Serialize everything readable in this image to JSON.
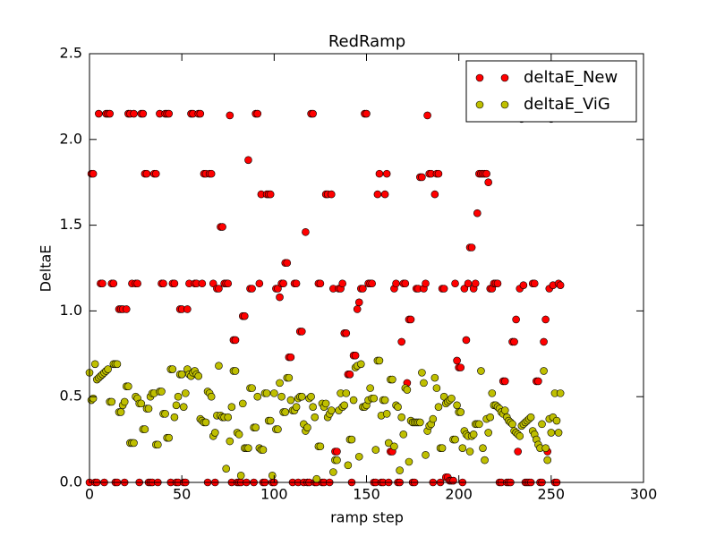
{
  "chart_data": {
    "type": "scatter",
    "title": "RedRamp",
    "xlabel": "ramp step",
    "ylabel": "DeltaE",
    "xlim": [
      0,
      300
    ],
    "ylim": [
      0,
      2.5
    ],
    "xticks": [
      0,
      50,
      100,
      150,
      200,
      250,
      300
    ],
    "yticks": [
      {
        "value": 0,
        "label": "0.0"
      },
      {
        "value": 0.5,
        "label": "0.5"
      },
      {
        "value": 1,
        "label": "1.0"
      },
      {
        "value": 1.5,
        "label": "1.5"
      },
      {
        "value": 2,
        "label": "2.0"
      },
      {
        "value": 2.5,
        "label": "2.5"
      }
    ],
    "legend": "upper right",
    "x": [
      0,
      1,
      2,
      3,
      4,
      5,
      6,
      7,
      8,
      9,
      10,
      11,
      12,
      13,
      14,
      15,
      16,
      17,
      18,
      19,
      20,
      21,
      22,
      23,
      24,
      25,
      26,
      27,
      28,
      29,
      30,
      31,
      32,
      33,
      34,
      35,
      36,
      37,
      38,
      39,
      40,
      41,
      42,
      43,
      44,
      45,
      46,
      47,
      48,
      49,
      50,
      51,
      52,
      53,
      54,
      55,
      56,
      57,
      58,
      59,
      60,
      61,
      62,
      63,
      64,
      65,
      66,
      67,
      68,
      69,
      70,
      71,
      72,
      73,
      74,
      75,
      76,
      77,
      78,
      79,
      80,
      81,
      82,
      83,
      84,
      85,
      86,
      87,
      88,
      89,
      90,
      91,
      92,
      93,
      94,
      95,
      96,
      97,
      98,
      99,
      100,
      101,
      102,
      103,
      104,
      105,
      106,
      107,
      108,
      109,
      110,
      111,
      112,
      113,
      114,
      115,
      116,
      117,
      118,
      119,
      120,
      121,
      122,
      123,
      124,
      125,
      126,
      127,
      128,
      129,
      130,
      131,
      132,
      133,
      134,
      135,
      136,
      137,
      138,
      139,
      140,
      141,
      142,
      143,
      144,
      145,
      146,
      147,
      148,
      149,
      150,
      151,
      152,
      153,
      154,
      155,
      156,
      157,
      158,
      159,
      160,
      161,
      162,
      163,
      164,
      165,
      166,
      167,
      168,
      169,
      170,
      171,
      172,
      173,
      174,
      175,
      176,
      177,
      178,
      179,
      180,
      181,
      182,
      183,
      184,
      185,
      186,
      187,
      188,
      189,
      190,
      191,
      192,
      193,
      194,
      195,
      196,
      197,
      198,
      199,
      200,
      201,
      202,
      203,
      204,
      205,
      206,
      207,
      208,
      209,
      210,
      211,
      212,
      213,
      214,
      215,
      216,
      217,
      218,
      219,
      220,
      221,
      222,
      223,
      224,
      225,
      226,
      227,
      228,
      229,
      230,
      231,
      232,
      233,
      234,
      235,
      236,
      237,
      238,
      239,
      240,
      241,
      242,
      243,
      244,
      245,
      246,
      247,
      248,
      249,
      250,
      251,
      252,
      253,
      254,
      255
    ],
    "series": [
      {
        "name": "deltaE_New",
        "color": "#ff0000",
        "values": [
          0,
          1.8,
          1.8,
          0,
          0,
          2.15,
          1.16,
          1.16,
          0,
          2.15,
          2.15,
          2.15,
          1.16,
          1.16,
          0,
          0,
          1.01,
          1.01,
          1.01,
          0,
          1.01,
          2.15,
          2.15,
          1.16,
          2.15,
          1.16,
          1.16,
          0,
          2.15,
          2.15,
          1.8,
          1.8,
          0,
          0,
          0,
          1.8,
          1.8,
          0,
          2.15,
          1.16,
          1.16,
          2.15,
          2.15,
          2.15,
          0,
          1.16,
          1.16,
          0,
          0,
          1.01,
          1.01,
          0,
          0,
          1.01,
          1.16,
          2.15,
          2.15,
          1.16,
          1.16,
          2.15,
          2.15,
          1.16,
          1.8,
          1.8,
          0,
          1.8,
          1.8,
          1.16,
          0,
          1.13,
          1.13,
          1.49,
          1.49,
          1.16,
          1.16,
          1.16,
          2.14,
          0,
          0.83,
          0.83,
          0,
          0,
          0,
          0.97,
          0.97,
          0,
          1.88,
          1.13,
          1.13,
          0,
          2.15,
          2.15,
          1.16,
          1.68,
          0,
          0,
          1.68,
          1.68,
          1.68,
          0,
          0,
          1.13,
          1.13,
          1.08,
          1.16,
          1.16,
          1.28,
          1.28,
          0.73,
          0.73,
          0,
          1.16,
          1.16,
          0,
          0.88,
          0.88,
          0,
          1.46,
          0,
          0,
          2.15,
          2.15,
          0,
          0,
          1.16,
          1.16,
          0,
          0,
          1.68,
          1.68,
          0,
          1.68,
          1.13,
          0.18,
          0.18,
          1.13,
          1.13,
          1.16,
          0.87,
          0.87,
          0.63,
          0.63,
          0,
          0.74,
          0.74,
          1.01,
          1.05,
          1.13,
          1.13,
          2.15,
          2.15,
          1.16,
          1.16,
          1.16,
          0,
          0,
          1.68,
          1.8,
          0,
          0,
          1.68,
          1.8,
          0,
          0.18,
          0.18,
          1.13,
          1.16,
          0,
          0,
          0.82,
          1.16,
          1.16,
          0.58,
          0.95,
          0.95,
          0,
          0,
          1.13,
          1.13,
          1.78,
          1.78,
          1.13,
          1.16,
          2.14,
          1.8,
          1.8,
          0,
          1.68,
          1.8,
          1.8,
          0,
          1.13,
          1.13,
          0.03,
          0.03,
          0.01,
          0.01,
          0.01,
          1.16,
          0.71,
          0.67,
          0.67,
          0,
          1.13,
          0.83,
          1.16,
          1.37,
          1.37,
          1.13,
          1.16,
          1.57,
          1.8,
          1.8,
          1.8,
          1.8,
          1.8,
          1.75,
          1.13,
          1.13,
          1.16,
          1.16,
          1.16,
          0,
          0,
          0.59,
          0.59,
          0,
          0,
          0,
          0.82,
          0.82,
          0.95,
          0.18,
          1.13,
          2.12,
          1.15,
          0,
          0,
          0,
          0,
          1.16,
          1.16,
          0.59,
          0.59,
          0,
          0,
          0.82,
          0.95,
          0.18,
          1.13,
          2.12,
          1.15,
          0,
          0,
          1.16,
          1.15
        ]
      },
      {
        "name": "deltaE_ViG",
        "color": "#bfbf00",
        "values": [
          0.64,
          0.48,
          0.49,
          0.69,
          0.6,
          0.61,
          0.62,
          0.63,
          0.64,
          0.65,
          0.66,
          0.47,
          0.47,
          0.69,
          0.69,
          0.69,
          0.41,
          0.41,
          0.45,
          0.47,
          0.56,
          0.56,
          0.23,
          0.23,
          0.23,
          0.5,
          0.49,
          0.46,
          0.46,
          0.31,
          0.31,
          0.43,
          0.43,
          0.5,
          0.52,
          0.52,
          0.22,
          0.22,
          0.53,
          0.53,
          0.4,
          0.4,
          0.26,
          0.26,
          0.66,
          0.66,
          0.38,
          0.45,
          0.5,
          0.63,
          0.63,
          0.44,
          0.52,
          0.66,
          0.63,
          0.62,
          0.64,
          0.65,
          0.63,
          0.62,
          0.37,
          0.36,
          0.35,
          0.35,
          0.53,
          0.52,
          0.5,
          0.27,
          0.29,
          0.39,
          0.68,
          0.39,
          0.38,
          0.38,
          0.08,
          0.38,
          0.24,
          0.44,
          0.65,
          0.65,
          0.29,
          0.28,
          0.04,
          0.46,
          0.2,
          0.2,
          0.2,
          0.55,
          0.55,
          0.32,
          0.32,
          0.5,
          0.2,
          0.19,
          0.19,
          0.52,
          0.52,
          0.36,
          0.36,
          0.04,
          0.52,
          0.31,
          0.31,
          0.58,
          0.5,
          0.41,
          0.41,
          0.61,
          0.61,
          0.48,
          0.42,
          0.42,
          0.44,
          0.49,
          0.5,
          0.5,
          0.34,
          0.3,
          0.32,
          0.49,
          0.5,
          0.44,
          0.38,
          0.02,
          0.21,
          0.21,
          0.46,
          0.44,
          0.46,
          0.38,
          0.4,
          0.42,
          0.06,
          0.13,
          0.13,
          0.42,
          0.52,
          0.44,
          0.45,
          0.52,
          0.1,
          0.25,
          0.25,
          0.48,
          0.67,
          0.68,
          0.15,
          0.69,
          0.44,
          0.44,
          0.45,
          0.48,
          0.55,
          0.49,
          0.49,
          0.19,
          0.71,
          0.71,
          0.39,
          0.48,
          0.48,
          0.4,
          0.23,
          0.6,
          0.6,
          0.21,
          0.45,
          0.44,
          0.07,
          0.38,
          0.28,
          0.55,
          0.54,
          0.12,
          0.36,
          0.35,
          0.35,
          0.35,
          0.35,
          0.35,
          0.64,
          0.58,
          0.16,
          0.3,
          0.33,
          0.34,
          0.37,
          0.61,
          0.55,
          0.44,
          0.2,
          0.2,
          0.5,
          0.46,
          0.47,
          0.48,
          0.49,
          0.25,
          0.25,
          0.45,
          0.41,
          0.41,
          0.2,
          0.3,
          0.28,
          0.27,
          0.18,
          0.27,
          0.28,
          0.34,
          0.34,
          0.34,
          0.65,
          0.2,
          0.13,
          0.37,
          0.29,
          0.38,
          0.52,
          0.45,
          0.45,
          0.44,
          0.43,
          0.41,
          0.4,
          0.42,
          0.38,
          0.36,
          0.35,
          0.34,
          0.3,
          0.29,
          0.28,
          0.27,
          0.33,
          0.34,
          0.35,
          0.36,
          0.37,
          0.38,
          0.3,
          0.28,
          0.25,
          0.22,
          0.2,
          0.34,
          0.65,
          0.2,
          0.13,
          0.37,
          0.29,
          0.38,
          0.52,
          0.36,
          0.29,
          0.52
        ]
      }
    ]
  }
}
